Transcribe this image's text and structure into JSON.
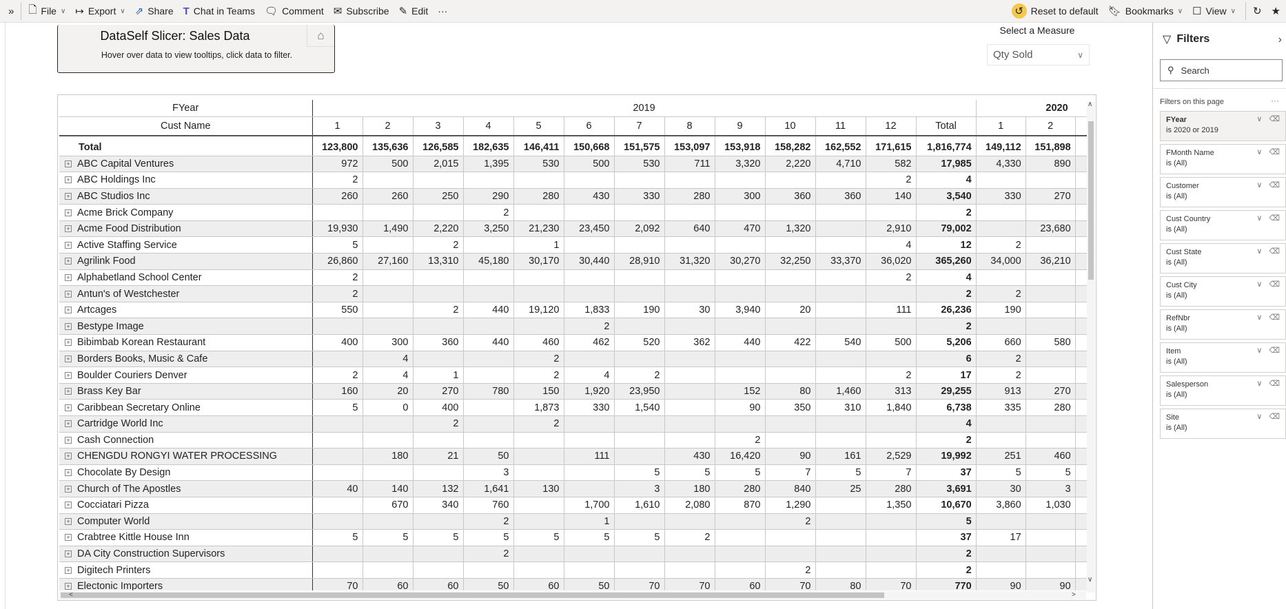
{
  "toolbar": {
    "items": [
      {
        "label": "File",
        "icon": "file-icon",
        "dropdown": true
      },
      {
        "label": "Export",
        "icon": "export-icon",
        "dropdown": true
      },
      {
        "label": "Share",
        "icon": "share-icon"
      },
      {
        "label": "Chat in Teams",
        "icon": "teams-icon"
      },
      {
        "label": "Comment",
        "icon": "comment-icon"
      },
      {
        "label": "Subscribe",
        "icon": "mail-icon"
      },
      {
        "label": "Edit",
        "icon": "pencil-icon"
      }
    ],
    "more": "···",
    "reset": "Reset to default",
    "bookmarks": "Bookmarks",
    "view": "View",
    "reset_accent": "#f2c94c"
  },
  "card": {
    "title": "DataSelf Slicer: Sales Data",
    "subtitle": "Hover over data to view tooltips, click data to filter."
  },
  "measure": {
    "label": "Select a Measure",
    "value": "Qty Sold"
  },
  "filters": {
    "title": "Filters",
    "search_placeholder": "Search",
    "on_page": "Filters on this page",
    "items": [
      {
        "name": "FYear",
        "value": "is 2020 or 2019",
        "active": true
      },
      {
        "name": "FMonth Name",
        "value": "is (All)"
      },
      {
        "name": "Customer",
        "value": "is (All)"
      },
      {
        "name": "Cust Country",
        "value": "is (All)"
      },
      {
        "name": "Cust State",
        "value": "is (All)"
      },
      {
        "name": "Cust City",
        "value": "is (All)"
      },
      {
        "name": "RefNbr",
        "value": "is (All)"
      },
      {
        "name": "Item",
        "value": "is (All)"
      },
      {
        "name": "Salesperson",
        "value": "is (All)"
      },
      {
        "name": "Site",
        "value": "is (All)"
      }
    ]
  },
  "matrix": {
    "row_header": "Cust Name",
    "col_header": "FYear",
    "years": [
      "2019",
      "2020"
    ],
    "months": [
      "1",
      "2",
      "3",
      "4",
      "5",
      "6",
      "7",
      "8",
      "9",
      "10",
      "11",
      "12"
    ],
    "months_2020": [
      "1",
      "2"
    ],
    "total_label": "Total",
    "total": {
      "name": "Total",
      "m": [
        "123,800",
        "135,636",
        "126,585",
        "182,635",
        "146,411",
        "150,668",
        "151,575",
        "153,097",
        "153,918",
        "158,282",
        "162,552",
        "171,615"
      ],
      "t": "1,816,774",
      "n": [
        "149,112",
        "151,898"
      ]
    },
    "rows": [
      {
        "name": "ABC Capital Ventures",
        "m": [
          "972",
          "500",
          "2,015",
          "1,395",
          "530",
          "500",
          "530",
          "711",
          "3,320",
          "2,220",
          "4,710",
          "582"
        ],
        "t": "17,985",
        "n": [
          "4,330",
          "890"
        ]
      },
      {
        "name": "ABC Holdings Inc",
        "m": [
          "2",
          "",
          "",
          "",
          "",
          "",
          "",
          "",
          "",
          "",
          "",
          "2"
        ],
        "t": "4",
        "n": [
          "",
          ""
        ]
      },
      {
        "name": "ABC Studios Inc",
        "m": [
          "260",
          "260",
          "250",
          "290",
          "280",
          "430",
          "330",
          "280",
          "300",
          "360",
          "360",
          "140"
        ],
        "t": "3,540",
        "n": [
          "330",
          "270"
        ]
      },
      {
        "name": "Acme Brick Company",
        "m": [
          "",
          "",
          "",
          "2",
          "",
          "",
          "",
          "",
          "",
          "",
          "",
          ""
        ],
        "t": "2",
        "n": [
          "",
          ""
        ]
      },
      {
        "name": "Acme Food Distribution",
        "m": [
          "19,930",
          "1,490",
          "2,220",
          "3,250",
          "21,230",
          "23,450",
          "2,092",
          "640",
          "470",
          "1,320",
          "",
          "2,910"
        ],
        "t": "79,002",
        "n": [
          "",
          "23,680"
        ]
      },
      {
        "name": "Active Staffing Service",
        "m": [
          "5",
          "",
          "2",
          "",
          "1",
          "",
          "",
          "",
          "",
          "",
          "",
          "4"
        ],
        "t": "12",
        "n": [
          "2",
          ""
        ]
      },
      {
        "name": "Agrilink Food",
        "m": [
          "26,860",
          "27,160",
          "13,310",
          "45,180",
          "30,170",
          "30,440",
          "28,910",
          "31,320",
          "30,270",
          "32,250",
          "33,370",
          "36,020"
        ],
        "t": "365,260",
        "n": [
          "34,000",
          "36,210"
        ]
      },
      {
        "name": "Alphabetland School Center",
        "m": [
          "2",
          "",
          "",
          "",
          "",
          "",
          "",
          "",
          "",
          "",
          "",
          "2"
        ],
        "t": "4",
        "n": [
          "",
          ""
        ]
      },
      {
        "name": "Antun's of Westchester",
        "m": [
          "2",
          "",
          "",
          "",
          "",
          "",
          "",
          "",
          "",
          "",
          "",
          ""
        ],
        "t": "2",
        "n": [
          "2",
          ""
        ]
      },
      {
        "name": "Artcages",
        "m": [
          "550",
          "",
          "2",
          "440",
          "19,120",
          "1,833",
          "190",
          "30",
          "3,940",
          "20",
          "",
          "111"
        ],
        "t": "26,236",
        "n": [
          "190",
          ""
        ]
      },
      {
        "name": "Bestype Image",
        "m": [
          "",
          "",
          "",
          "",
          "",
          "2",
          "",
          "",
          "",
          "",
          "",
          ""
        ],
        "t": "2",
        "n": [
          "",
          ""
        ]
      },
      {
        "name": "Bibimbab Korean Restaurant",
        "m": [
          "400",
          "300",
          "360",
          "440",
          "460",
          "462",
          "520",
          "362",
          "440",
          "422",
          "540",
          "500"
        ],
        "t": "5,206",
        "n": [
          "660",
          "580"
        ]
      },
      {
        "name": "Borders Books, Music & Cafe",
        "m": [
          "",
          "4",
          "",
          "",
          "2",
          "",
          "",
          "",
          "",
          "",
          "",
          ""
        ],
        "t": "6",
        "n": [
          "2",
          ""
        ]
      },
      {
        "name": "Boulder Couriers Denver",
        "m": [
          "2",
          "4",
          "1",
          "",
          "2",
          "4",
          "2",
          "",
          "",
          "",
          "",
          "2"
        ],
        "t": "17",
        "n": [
          "2",
          ""
        ]
      },
      {
        "name": "Brass Key Bar",
        "m": [
          "160",
          "20",
          "270",
          "780",
          "150",
          "1,920",
          "23,950",
          "",
          "152",
          "80",
          "1,460",
          "313"
        ],
        "t": "29,255",
        "n": [
          "913",
          "270"
        ]
      },
      {
        "name": "Caribbean Secretary Online",
        "m": [
          "5",
          "0",
          "400",
          "",
          "1,873",
          "330",
          "1,540",
          "",
          "90",
          "350",
          "310",
          "1,840"
        ],
        "t": "6,738",
        "n": [
          "335",
          "280"
        ]
      },
      {
        "name": "Cartridge World Inc",
        "m": [
          "",
          "",
          "2",
          "",
          "2",
          "",
          "",
          "",
          "",
          "",
          "",
          ""
        ],
        "t": "4",
        "n": [
          "",
          ""
        ]
      },
      {
        "name": "Cash Connection",
        "m": [
          "",
          "",
          "",
          "",
          "",
          "",
          "",
          "",
          "2",
          "",
          "",
          ""
        ],
        "t": "2",
        "n": [
          "",
          ""
        ]
      },
      {
        "name": "CHENGDU RONGYI WATER PROCESSING",
        "m": [
          "",
          "180",
          "21",
          "50",
          "",
          "111",
          "",
          "430",
          "16,420",
          "90",
          "161",
          "2,529"
        ],
        "t": "19,992",
        "n": [
          "251",
          "460"
        ]
      },
      {
        "name": "Chocolate By Design",
        "m": [
          "",
          "",
          "",
          "3",
          "",
          "",
          "5",
          "5",
          "5",
          "7",
          "5",
          "7"
        ],
        "t": "37",
        "n": [
          "5",
          "5"
        ]
      },
      {
        "name": "Church of The Apostles",
        "m": [
          "40",
          "140",
          "132",
          "1,641",
          "130",
          "",
          "3",
          "180",
          "280",
          "840",
          "25",
          "280"
        ],
        "t": "3,691",
        "n": [
          "30",
          "3"
        ]
      },
      {
        "name": "Cocciatari Pizza",
        "m": [
          "",
          "670",
          "340",
          "760",
          "",
          "1,700",
          "1,610",
          "2,080",
          "870",
          "1,290",
          "",
          "1,350"
        ],
        "t": "10,670",
        "n": [
          "3,860",
          "1,030"
        ]
      },
      {
        "name": "Computer World",
        "m": [
          "",
          "",
          "",
          "2",
          "",
          "1",
          "",
          "",
          "",
          "2",
          "",
          ""
        ],
        "t": "5",
        "n": [
          "",
          ""
        ]
      },
      {
        "name": "Crabtree Kittle House Inn",
        "m": [
          "5",
          "5",
          "5",
          "5",
          "5",
          "5",
          "5",
          "2",
          "",
          "",
          "",
          ""
        ],
        "t": "37",
        "n": [
          "17",
          ""
        ]
      },
      {
        "name": "DA City Construction Supervisors",
        "m": [
          "",
          "",
          "",
          "2",
          "",
          "",
          "",
          "",
          "",
          "",
          "",
          ""
        ],
        "t": "2",
        "n": [
          "",
          ""
        ]
      },
      {
        "name": "Digitech Printers",
        "m": [
          "",
          "",
          "",
          "",
          "",
          "",
          "",
          "",
          "",
          "2",
          "",
          ""
        ],
        "t": "2",
        "n": [
          "",
          ""
        ]
      },
      {
        "name": "Electonic Importers",
        "m": [
          "70",
          "60",
          "60",
          "50",
          "60",
          "50",
          "70",
          "70",
          "60",
          "70",
          "80",
          "70"
        ],
        "t": "770",
        "n": [
          "90",
          "90"
        ]
      }
    ]
  }
}
